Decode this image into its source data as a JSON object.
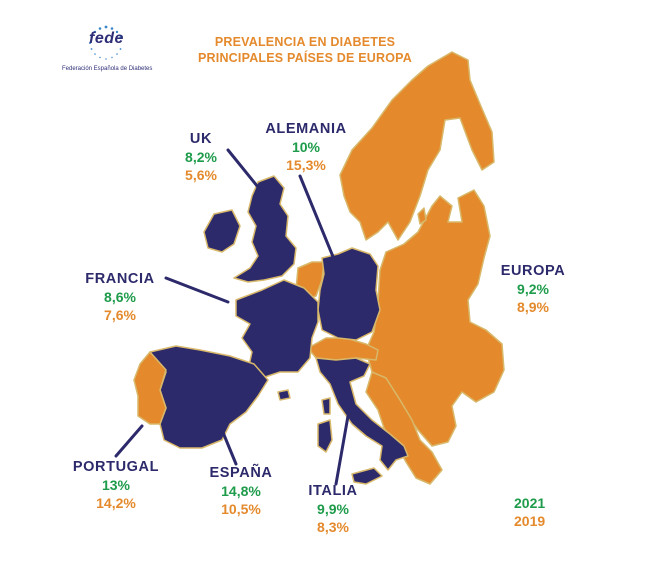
{
  "header": {
    "title_line1": "PREVALENCIA EN DIABETES",
    "title_line2": "PRINCIPALES PAÍSES DE EUROPA"
  },
  "logo": {
    "text": "fede",
    "caption": "Federación Española de Diabetes"
  },
  "colors": {
    "highlight_country": "#2d2a6b",
    "europe_other": "#e48a2d",
    "value_2021": "#1e9b4b",
    "value_2019": "#e48a2d",
    "border": "#d8b86a"
  },
  "countries": [
    {
      "name": "UK",
      "v2021": "8,2%",
      "v2019": "5,6%"
    },
    {
      "name": "ALEMANIA",
      "v2021": "10%",
      "v2019": "15,3%"
    },
    {
      "name": "FRANCIA",
      "v2021": "8,6%",
      "v2019": "7,6%"
    },
    {
      "name": "EUROPA",
      "v2021": "9,2%",
      "v2019": "8,9%"
    },
    {
      "name": "PORTUGAL",
      "v2021": "13%",
      "v2019": "14,2%"
    },
    {
      "name": "ESPAÑA",
      "v2021": "14,8%",
      "v2019": "10,5%"
    },
    {
      "name": "ITALIA",
      "v2021": "9,9%",
      "v2019": "8,3%"
    }
  ],
  "legend": {
    "year_2021": "2021",
    "year_2019": "2019"
  }
}
